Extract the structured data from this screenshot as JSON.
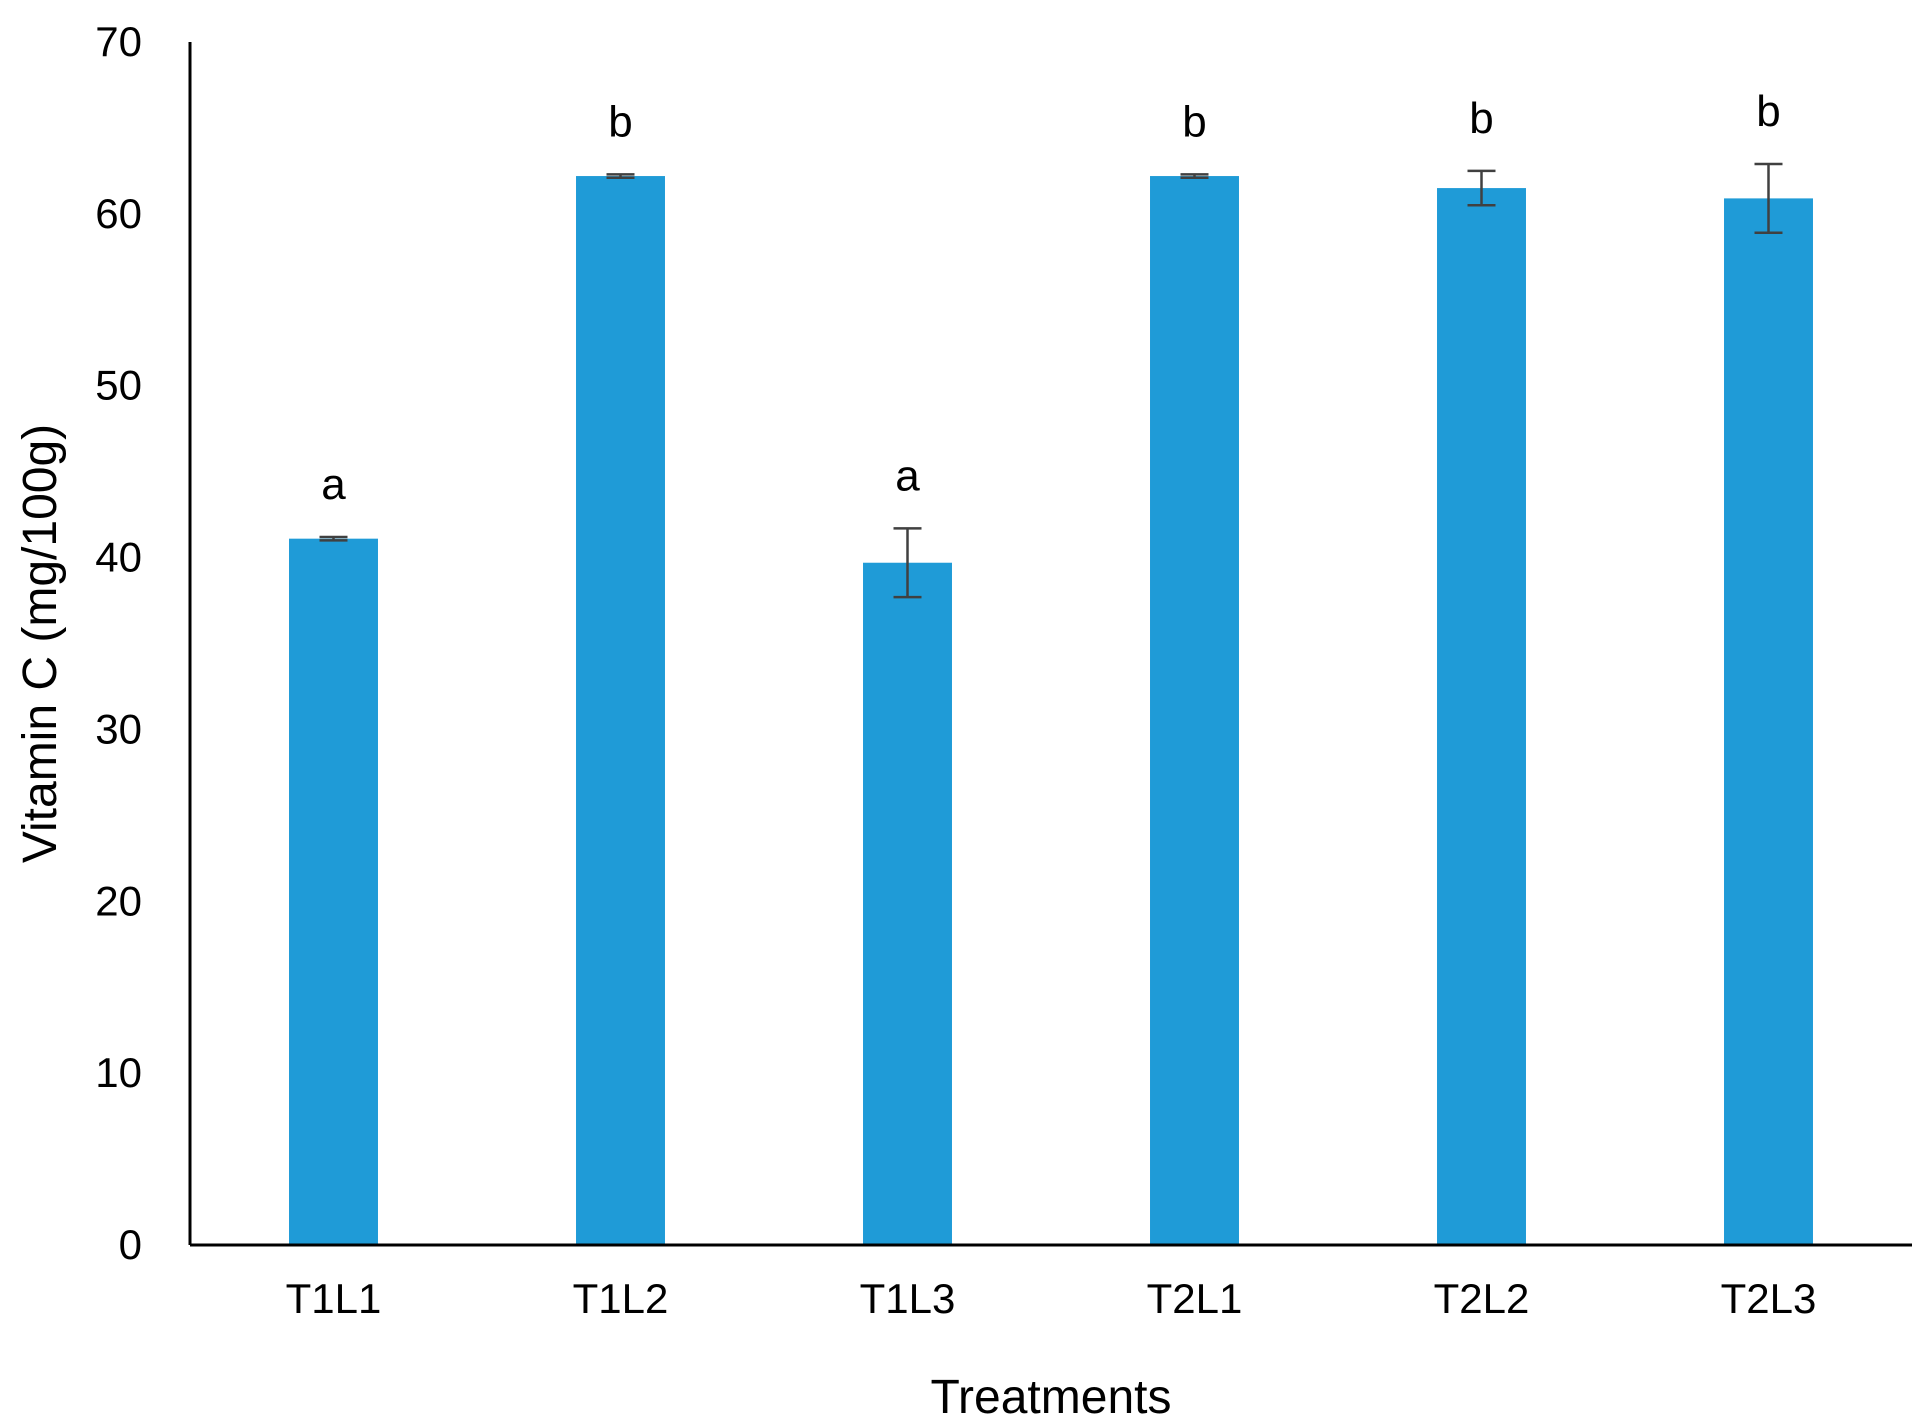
{
  "chart_data": {
    "type": "bar",
    "title": "",
    "xlabel": "Treatments",
    "ylabel": "Vitamin C (mg/100g)",
    "ylim": [
      0,
      70
    ],
    "yticks": [
      0,
      10,
      20,
      30,
      40,
      50,
      60,
      70
    ],
    "grid": false,
    "legend": "none",
    "categories": [
      "T1L1",
      "T1L2",
      "T1L3",
      "T2L1",
      "T2L2",
      "T2L3"
    ],
    "series": [
      {
        "values": [
          41.1,
          62.2,
          39.7,
          62.2,
          61.5,
          60.9
        ],
        "errors": [
          0.1,
          0.1,
          2.0,
          0.1,
          1.0,
          2.0
        ],
        "color": "#1f9bd7"
      }
    ],
    "significance_labels": [
      "a",
      "b",
      "a",
      "b",
      "b",
      "b"
    ],
    "error_bar_color": "#404040",
    "axis_color": "#000000"
  }
}
